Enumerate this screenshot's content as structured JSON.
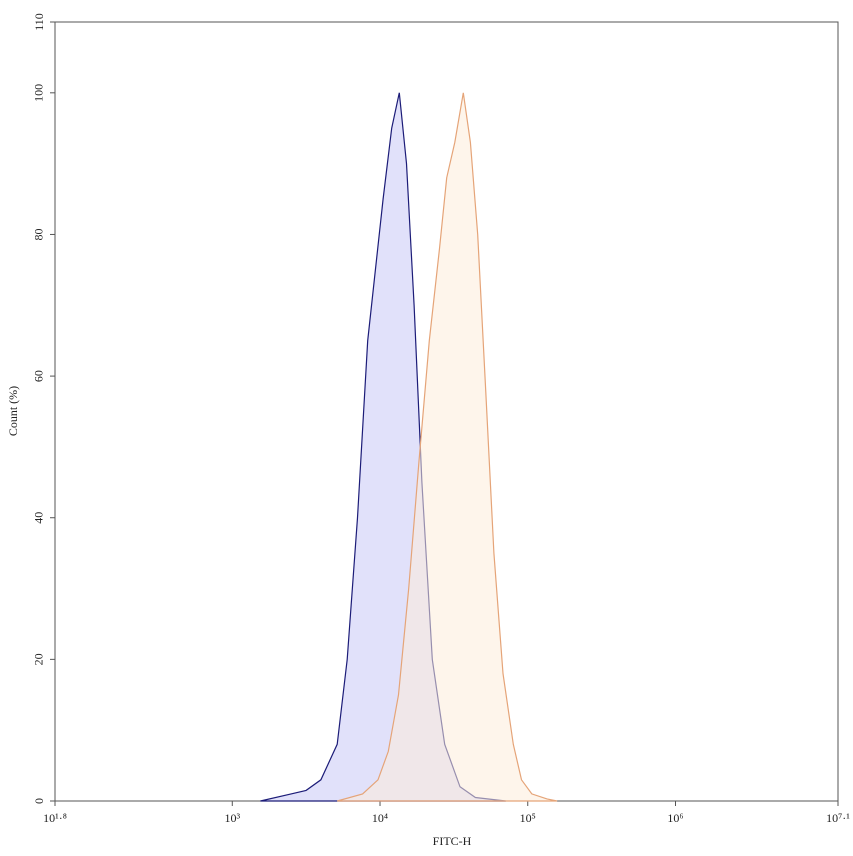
{
  "chart_data": {
    "type": "histogram-overlay",
    "xlabel": "FITC-H",
    "ylabel": "Count (%)",
    "xscale": "log",
    "xlim": [
      63.0957,
      12589254.1
    ],
    "xticks": [
      {
        "value": 63.0957,
        "label": "10¹·⁸"
      },
      {
        "value": 1000,
        "label": "10³"
      },
      {
        "value": 10000,
        "label": "10⁴"
      },
      {
        "value": 100000,
        "label": "10⁵"
      },
      {
        "value": 1000000,
        "label": "10⁶"
      },
      {
        "value": 12589254.1,
        "label": "10⁷·¹"
      }
    ],
    "ylim": [
      0,
      110
    ],
    "yticks": [
      0,
      20,
      40,
      60,
      80,
      100,
      110
    ],
    "series": [
      {
        "color": "#1c1c78",
        "fill": "rgba(200,200,245,0.55)",
        "x": [
          1550,
          2500,
          3160,
          3980,
          5130,
          6000,
          7040,
          8250,
          10500,
          12000,
          13500,
          15100,
          17000,
          19200,
          22600,
          27400,
          34800,
          44200,
          71000
        ],
        "values": [
          0,
          1,
          1.5,
          3,
          8,
          20,
          40,
          65,
          85,
          95,
          100,
          90,
          70,
          45,
          20,
          8,
          2,
          0.5,
          0
        ]
      },
      {
        "color": "#e5a478",
        "fill": "rgba(253,236,218,0.55)",
        "x": [
          5130,
          7620,
          9690,
          11370,
          13330,
          15640,
          18350,
          21540,
          25270,
          28270,
          32100,
          36600,
          40900,
          45800,
          51900,
          59000,
          68000,
          79800,
          90700,
          106500,
          135000,
          158000
        ],
        "values": [
          0,
          1,
          3,
          7,
          15,
          30,
          48,
          65,
          78,
          88,
          93,
          100,
          93,
          80,
          58,
          35,
          18,
          8,
          3,
          1,
          0.3,
          0
        ]
      }
    ]
  }
}
